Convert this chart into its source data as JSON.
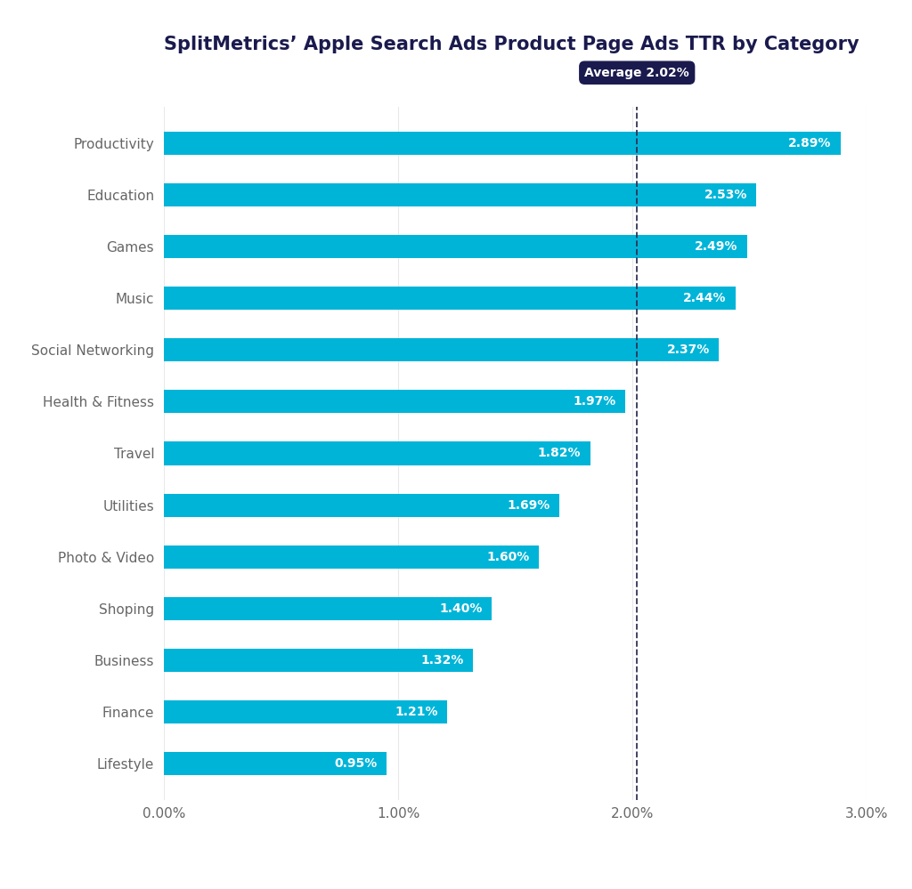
{
  "title": "SplitMetrics’ Apple Search Ads Product Page Ads TTR by Category",
  "categories": [
    "Productivity",
    "Education",
    "Games",
    "Music",
    "Social Networking",
    "Health & Fitness",
    "Travel",
    "Utilities",
    "Photo & Video",
    "Shoping",
    "Business",
    "Finance",
    "Lifestyle"
  ],
  "values": [
    2.89,
    2.53,
    2.49,
    2.44,
    2.37,
    1.97,
    1.82,
    1.69,
    1.6,
    1.4,
    1.32,
    1.21,
    0.95
  ],
  "bar_color": "#00b4d8",
  "average": 2.02,
  "average_label": "Average 2.02%",
  "xlim": [
    0,
    3.0
  ],
  "xticks": [
    0.0,
    1.0,
    2.0,
    3.0
  ],
  "xticklabels": [
    "0.00%",
    "1.00%",
    "2.00%",
    "3.00%"
  ],
  "title_color": "#1a1a4e",
  "label_color": "#666666",
  "value_label_color": "#ffffff",
  "avg_box_color": "#1a1a4e",
  "avg_text_color": "#ffffff",
  "avg_line_color": "#333355",
  "background_color": "#ffffff",
  "title_fontsize": 15,
  "label_fontsize": 11,
  "value_fontsize": 10,
  "avg_fontsize": 10,
  "bar_height": 0.45
}
